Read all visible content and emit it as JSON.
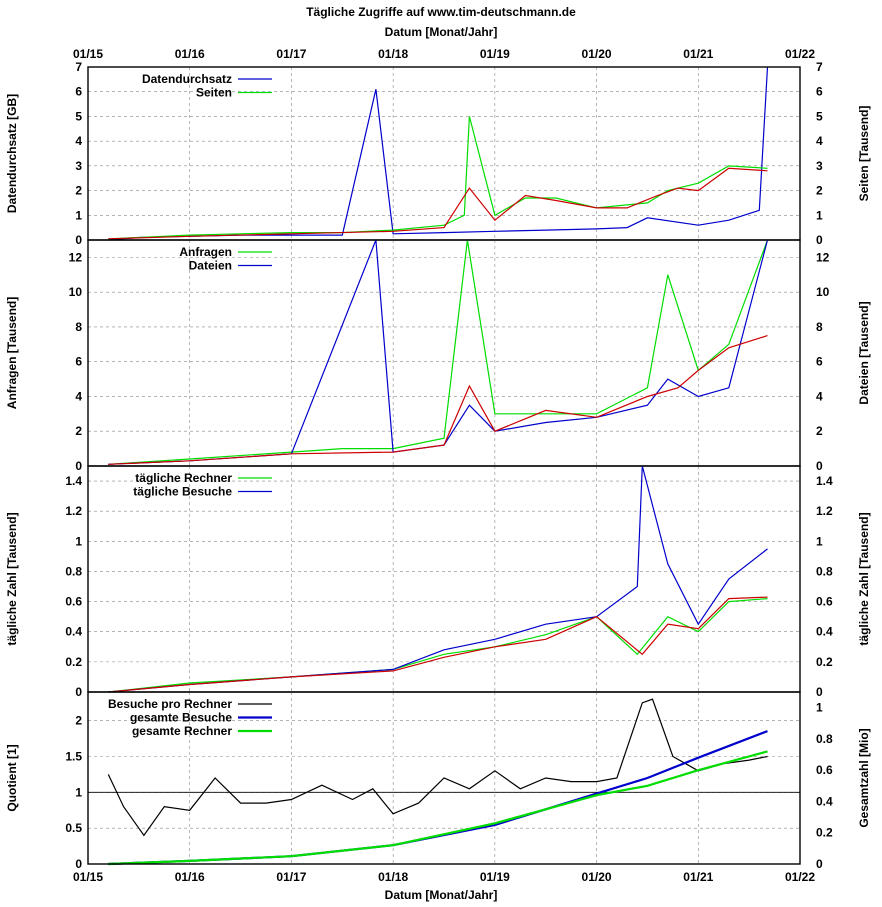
{
  "title": "Tägliche Zugriffe auf www.tim-deutschmann.de",
  "top_axis_label": "Datum [Monat/Jahr]",
  "bottom_axis_label": "Datum [Monat/Jahr]",
  "x_tick_labels": [
    "01/15",
    "01/16",
    "01/17",
    "01/18",
    "01/19",
    "01/20",
    "01/21",
    "01/22"
  ],
  "colors": {
    "green": "#00dd00",
    "blue": "#0000cc",
    "red": "#cc0000",
    "black": "#000000",
    "grid": "#888888"
  },
  "chart_data": [
    {
      "type": "line",
      "ylabel_left": "Datendurchsatz [GB]",
      "ylabel_right": "Seiten [Tausend]",
      "ylim": [
        0,
        7
      ],
      "yticks": [
        "0",
        "1",
        "2",
        "3",
        "4",
        "5",
        "6",
        "7"
      ],
      "xlim_years": [
        2015.0,
        2022.0
      ],
      "series": [
        {
          "name": "Datendurchsatz",
          "color": "blue",
          "x": [
            2015.2,
            2015.5,
            2016.0,
            2016.5,
            2017.0,
            2017.5,
            2017.83,
            2018.0,
            2018.5,
            2019.0,
            2019.5,
            2020.0,
            2020.3,
            2020.5,
            2021.0,
            2021.3,
            2021.6,
            2021.68
          ],
          "y": [
            0.0,
            0.1,
            0.15,
            0.2,
            0.2,
            0.2,
            6.1,
            0.25,
            0.3,
            0.35,
            0.4,
            0.45,
            0.5,
            0.9,
            0.6,
            0.8,
            1.2,
            7.0
          ]
        },
        {
          "name": "Seiten",
          "color": "green",
          "x": [
            2015.2,
            2015.5,
            2016.0,
            2016.5,
            2017.0,
            2017.5,
            2018.0,
            2018.5,
            2018.7,
            2018.75,
            2019.0,
            2019.3,
            2019.6,
            2020.0,
            2020.5,
            2020.7,
            2021.0,
            2021.3,
            2021.68
          ],
          "y": [
            0.05,
            0.1,
            0.2,
            0.25,
            0.3,
            0.3,
            0.4,
            0.6,
            1.0,
            5.0,
            1.0,
            1.7,
            1.7,
            1.3,
            1.5,
            2.0,
            2.3,
            3.0,
            2.9
          ]
        },
        {
          "name": "",
          "color": "red",
          "x": [
            2015.2,
            2016.0,
            2017.0,
            2018.0,
            2018.5,
            2018.75,
            2019.0,
            2019.3,
            2019.6,
            2020.0,
            2020.3,
            2020.6,
            2020.8,
            2021.0,
            2021.3,
            2021.68
          ],
          "y": [
            0.05,
            0.15,
            0.25,
            0.35,
            0.5,
            2.1,
            0.8,
            1.8,
            1.6,
            1.3,
            1.3,
            1.8,
            2.1,
            2.0,
            2.9,
            2.8
          ]
        }
      ]
    },
    {
      "type": "line",
      "ylabel_left": "Anfragen [Tausend]",
      "ylabel_right": "Dateien [Tausend]",
      "ylim": [
        0,
        13
      ],
      "yticks": [
        "0",
        "2",
        "4",
        "6",
        "8",
        "10",
        "12"
      ],
      "xlim_years": [
        2015.0,
        2022.0
      ],
      "series": [
        {
          "name": "Anfragen",
          "color": "green",
          "x": [
            2015.2,
            2016.0,
            2017.0,
            2017.5,
            2018.0,
            2018.5,
            2018.73,
            2019.0,
            2019.5,
            2020.0,
            2020.5,
            2020.7,
            2021.0,
            2021.3,
            2021.68
          ],
          "y": [
            0.1,
            0.4,
            0.8,
            1.0,
            1.0,
            1.6,
            13.0,
            3.0,
            3.0,
            3.0,
            4.5,
            11.0,
            5.5,
            7.0,
            13.0
          ]
        },
        {
          "name": "Dateien",
          "color": "blue",
          "x": [
            2015.2,
            2016.0,
            2017.0,
            2017.83,
            2018.0,
            2018.5,
            2018.75,
            2019.0,
            2019.5,
            2020.0,
            2020.5,
            2020.7,
            2021.0,
            2021.3,
            2021.68
          ],
          "y": [
            0.1,
            0.3,
            0.7,
            13.0,
            0.8,
            1.2,
            3.5,
            2.0,
            2.5,
            2.8,
            3.5,
            5.0,
            4.0,
            4.5,
            13.0
          ]
        },
        {
          "name": "",
          "color": "red",
          "x": [
            2015.2,
            2016.0,
            2017.0,
            2018.0,
            2018.5,
            2018.75,
            2019.0,
            2019.5,
            2020.0,
            2020.5,
            2020.8,
            2021.0,
            2021.3,
            2021.68
          ],
          "y": [
            0.1,
            0.3,
            0.7,
            0.8,
            1.2,
            4.6,
            2.0,
            3.2,
            2.8,
            4.0,
            4.5,
            5.5,
            6.8,
            7.5
          ]
        }
      ]
    },
    {
      "type": "line",
      "ylabel_left": "tägliche Zahl [Tausend]",
      "ylabel_right": "tägliche Zahl [Tausend]",
      "ylim": [
        0,
        1.5
      ],
      "yticks": [
        "0",
        "0.2",
        "0.4",
        "0.6",
        "0.8",
        "1",
        "1.2",
        "1.4"
      ],
      "xlim_years": [
        2015.0,
        2022.0
      ],
      "series": [
        {
          "name": "tägliche Rechner",
          "color": "green",
          "x": [
            2015.2,
            2016.0,
            2017.0,
            2018.0,
            2018.5,
            2019.0,
            2019.5,
            2020.0,
            2020.4,
            2020.7,
            2021.0,
            2021.3,
            2021.68
          ],
          "y": [
            0.0,
            0.06,
            0.1,
            0.15,
            0.25,
            0.3,
            0.38,
            0.5,
            0.25,
            0.5,
            0.4,
            0.6,
            0.62
          ]
        },
        {
          "name": "tägliche Besuche",
          "color": "blue",
          "x": [
            2015.2,
            2016.0,
            2017.0,
            2018.0,
            2018.5,
            2019.0,
            2019.5,
            2020.0,
            2020.4,
            2020.45,
            2020.7,
            2021.0,
            2021.3,
            2021.68
          ],
          "y": [
            0.0,
            0.05,
            0.1,
            0.15,
            0.28,
            0.35,
            0.45,
            0.5,
            0.7,
            1.5,
            0.85,
            0.45,
            0.75,
            0.95
          ]
        },
        {
          "name": "",
          "color": "red",
          "x": [
            2015.2,
            2016.0,
            2017.0,
            2018.0,
            2018.5,
            2019.0,
            2019.5,
            2020.0,
            2020.45,
            2020.7,
            2021.0,
            2021.3,
            2021.68
          ],
          "y": [
            0.0,
            0.05,
            0.1,
            0.14,
            0.23,
            0.3,
            0.35,
            0.5,
            0.25,
            0.45,
            0.42,
            0.62,
            0.63
          ]
        }
      ]
    },
    {
      "type": "line",
      "ylabel_left": "Quotient [1]",
      "ylabel_right": "Gesamtzahl [Mio]",
      "ylim": [
        0,
        2.4
      ],
      "yticks": [
        "0",
        "0.5",
        "1",
        "1.5",
        "2"
      ],
      "ylim_right": [
        0,
        1.1
      ],
      "yticks_right": [
        "0",
        "0.2",
        "0.4",
        "0.6",
        "0.8",
        "1"
      ],
      "xlim_years": [
        2015.0,
        2022.0
      ],
      "series": [
        {
          "name": "Besuche pro Rechner",
          "color": "black",
          "axis": "left",
          "x": [
            2015.2,
            2015.35,
            2015.55,
            2015.75,
            2016.0,
            2016.25,
            2016.5,
            2016.75,
            2017.0,
            2017.3,
            2017.6,
            2017.8,
            2018.0,
            2018.25,
            2018.5,
            2018.75,
            2019.0,
            2019.25,
            2019.5,
            2019.75,
            2020.0,
            2020.2,
            2020.45,
            2020.55,
            2020.75,
            2021.0,
            2021.25,
            2021.5,
            2021.68
          ],
          "y": [
            1.25,
            0.8,
            0.4,
            0.8,
            0.75,
            1.2,
            0.85,
            0.85,
            0.9,
            1.1,
            0.9,
            1.05,
            0.7,
            0.85,
            1.2,
            1.05,
            1.3,
            1.05,
            1.2,
            1.15,
            1.15,
            1.2,
            2.25,
            2.3,
            1.5,
            1.3,
            1.4,
            1.45,
            1.5
          ]
        },
        {
          "name": "gesamte Besuche",
          "color": "blue",
          "axis": "right",
          "x": [
            2015.2,
            2016.0,
            2017.0,
            2018.0,
            2019.0,
            2019.5,
            2020.0,
            2020.5,
            2021.0,
            2021.68
          ],
          "y": [
            0.0,
            0.02,
            0.05,
            0.12,
            0.25,
            0.35,
            0.45,
            0.55,
            0.68,
            0.85
          ]
        },
        {
          "name": "gesamte Rechner",
          "color": "green",
          "axis": "right",
          "x": [
            2015.2,
            2016.0,
            2017.0,
            2018.0,
            2019.0,
            2019.5,
            2020.0,
            2020.5,
            2021.0,
            2021.68
          ],
          "y": [
            0.0,
            0.02,
            0.05,
            0.12,
            0.26,
            0.35,
            0.44,
            0.5,
            0.6,
            0.72
          ]
        }
      ]
    }
  ]
}
